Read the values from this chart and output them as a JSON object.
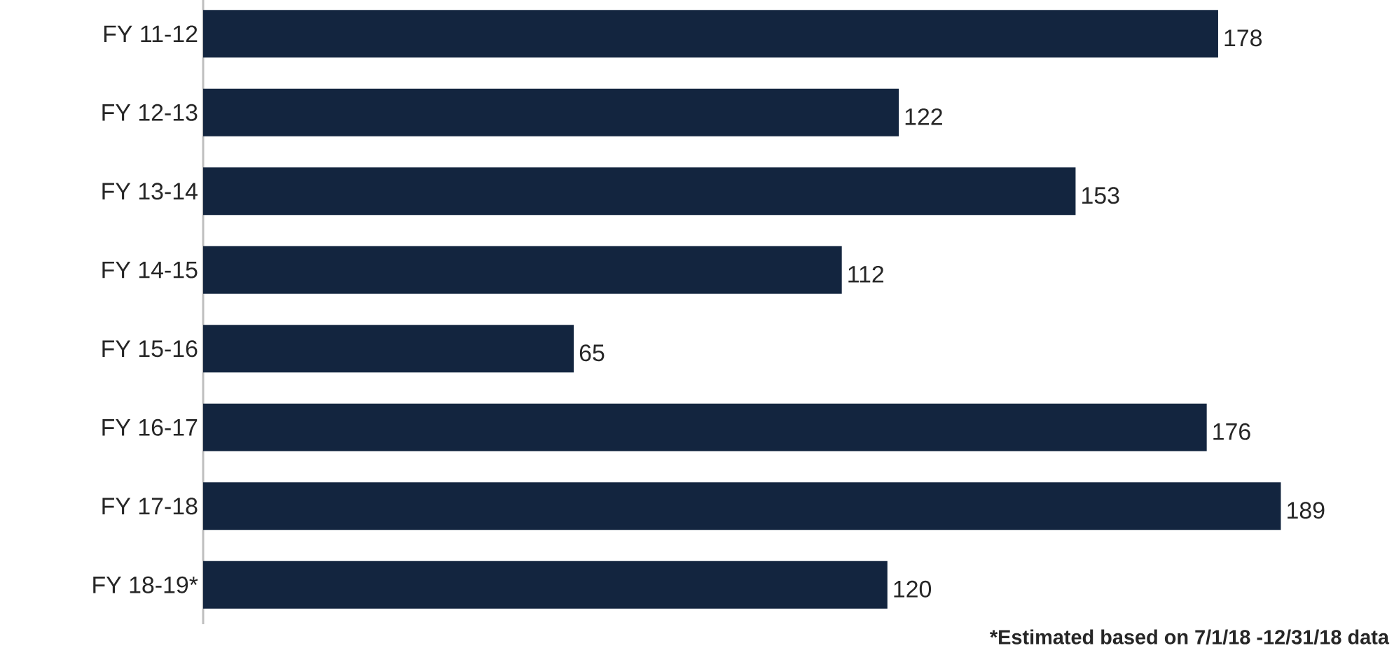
{
  "chart_data": {
    "type": "bar",
    "orientation": "horizontal",
    "categories": [
      "FY 11-12",
      "FY 12-13",
      "FY 13-14",
      "FY 14-15",
      "FY 15-16",
      "FY 16-17",
      "FY 17-18",
      "FY 18-19*"
    ],
    "values": [
      178,
      122,
      153,
      112,
      65,
      176,
      189,
      120
    ],
    "color": "#13253f",
    "data_labels": true,
    "annotations": [
      "*Estimated based on 7/1/18 -12/31/18 data"
    ]
  }
}
